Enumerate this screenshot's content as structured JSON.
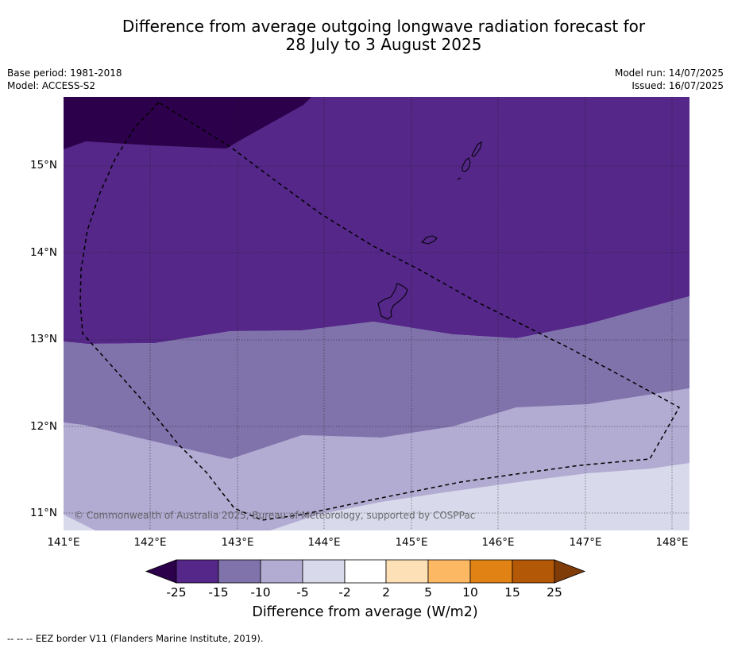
{
  "title_line1": "Difference from average outgoing longwave radiation forecast for",
  "title_line2": "28 July to 3 August 2025",
  "base_period": "Base period: 1981-2018",
  "model": "Model: ACCESS-S2",
  "model_run": "Model run: 14/07/2025",
  "issued": "Issued: 16/07/2025",
  "copyright": "© Commonwealth of Australia 2025, Bureau of Meteorology, supported by COSPPac",
  "footer": "--  --  -- EEZ border V11 (Flanders Marine Institute, 2019).",
  "map": {
    "lat_labels": [
      "15°N",
      "14°N",
      "13°N",
      "12°N",
      "11°N"
    ],
    "lon_labels": [
      "141°E",
      "142°E",
      "143°E",
      "144°E",
      "145°E",
      "146°E",
      "147°E",
      "148°E"
    ],
    "extent": {
      "lon": [
        141.0,
        148.2
      ],
      "lat": [
        10.8,
        15.8
      ]
    },
    "regions": [
      {
        "class": "< -25",
        "color": "#2d004b"
      },
      {
        "class": "-25 to -15",
        "color": "#542788"
      },
      {
        "class": "-15 to -10",
        "color": "#8073ac"
      },
      {
        "class": "-10 to -5",
        "color": "#b2abd2"
      },
      {
        "class": "-5 to -2",
        "color": "#d8daeb"
      }
    ],
    "features": [
      "eez-border-dashed",
      "island-outlines",
      "graticule"
    ]
  },
  "colorbar": {
    "label": "Difference from average (W/m2)",
    "ticks": [
      "-25",
      "-15",
      "-10",
      "-5",
      "-2",
      "2",
      "5",
      "10",
      "15",
      "25"
    ],
    "colors": [
      "#2d004b",
      "#542788",
      "#8073ac",
      "#b2abd2",
      "#d8daeb",
      "#ffffff",
      "#fee0b6",
      "#fdb863",
      "#e08214",
      "#b35806",
      "#7f3b08"
    ]
  }
}
